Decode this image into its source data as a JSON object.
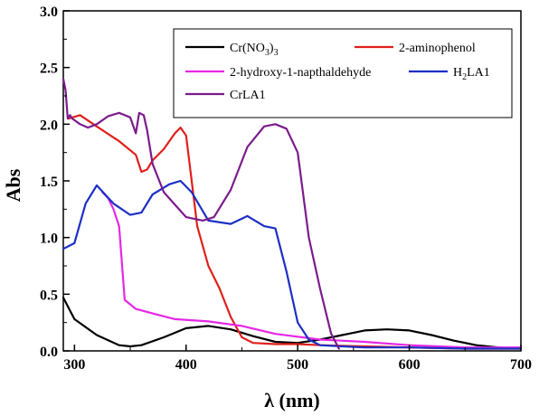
{
  "chart_data": {
    "type": "line",
    "xlabel": "λ (nm)",
    "ylabel": "Abs",
    "xlim": [
      290,
      700
    ],
    "ylim": [
      0.0,
      3.0
    ],
    "x_ticks": [
      300,
      400,
      500,
      600,
      700
    ],
    "y_ticks": [
      0.0,
      0.5,
      1.0,
      1.5,
      2.0,
      2.5,
      3.0
    ],
    "x_tick_labels": [
      "300",
      "400",
      "500",
      "600",
      "700"
    ],
    "y_tick_labels": [
      "0.0",
      "0.5",
      "1.0",
      "1.5",
      "2.0",
      "2.5",
      "3.0"
    ],
    "grid": false,
    "legend_position": "top-right",
    "series": [
      {
        "name": "Cr(NO3)3",
        "legend_main": "Cr(NO",
        "legend_sub": "3",
        "legend_tail": ")",
        "legend_sub2": "3",
        "color": "#000000",
        "x": [
          290,
          300,
          320,
          340,
          350,
          360,
          380,
          400,
          420,
          440,
          460,
          480,
          500,
          520,
          540,
          560,
          580,
          600,
          620,
          640,
          660,
          680,
          700
        ],
        "y": [
          0.47,
          0.28,
          0.14,
          0.05,
          0.04,
          0.05,
          0.12,
          0.2,
          0.22,
          0.19,
          0.13,
          0.08,
          0.07,
          0.1,
          0.14,
          0.18,
          0.19,
          0.18,
          0.14,
          0.09,
          0.05,
          0.03,
          0.02
        ]
      },
      {
        "name": "2-aminophenol",
        "legend_main": "2-aminophenol",
        "color": "#e0201b",
        "x": [
          295,
          305,
          320,
          340,
          355,
          360,
          365,
          370,
          380,
          390,
          395,
          400,
          410,
          420,
          430,
          440,
          450,
          460,
          480,
          500,
          520,
          560,
          600,
          650,
          700
        ],
        "y": [
          2.05,
          2.08,
          1.98,
          1.85,
          1.73,
          1.58,
          1.6,
          1.68,
          1.78,
          1.92,
          1.97,
          1.9,
          1.1,
          0.75,
          0.55,
          0.3,
          0.12,
          0.07,
          0.06,
          0.06,
          0.05,
          0.04,
          0.03,
          0.02,
          0.02
        ]
      },
      {
        "name": "2-hydroxy-1-napthaldehyde",
        "legend_main": "2-hydroxy-1-napthaldehyde",
        "color": "#e628e6",
        "x": [
          325,
          330,
          335,
          340,
          345,
          355,
          370,
          390,
          420,
          450,
          480,
          520,
          560,
          600,
          650,
          700
        ],
        "y": [
          1.4,
          1.35,
          1.25,
          1.1,
          0.45,
          0.37,
          0.33,
          0.28,
          0.26,
          0.22,
          0.15,
          0.1,
          0.08,
          0.05,
          0.03,
          0.03
        ]
      },
      {
        "name": "H2LA1",
        "legend_main": "H",
        "legend_sub": "2",
        "legend_tail": "LA1",
        "color": "#1c2fc4",
        "x": [
          290,
          300,
          310,
          320,
          335,
          350,
          360,
          370,
          385,
          395,
          405,
          420,
          440,
          455,
          470,
          480,
          490,
          500,
          510,
          520,
          540,
          560,
          600,
          650,
          700
        ],
        "y": [
          0.9,
          0.95,
          1.3,
          1.46,
          1.3,
          1.2,
          1.22,
          1.38,
          1.47,
          1.5,
          1.4,
          1.15,
          1.12,
          1.19,
          1.1,
          1.08,
          0.7,
          0.25,
          0.1,
          0.05,
          0.04,
          0.03,
          0.03,
          0.02,
          0.02
        ]
      },
      {
        "name": "CrLA1",
        "legend_main": "CrLA1",
        "color": "#7b1c8c",
        "x": [
          290,
          292,
          294,
          296,
          298,
          305,
          312,
          320,
          330,
          340,
          350,
          355,
          358,
          362,
          365,
          370,
          380,
          400,
          415,
          425,
          440,
          455,
          470,
          480,
          490,
          500,
          510,
          520,
          530,
          537
        ],
        "y": [
          2.4,
          2.3,
          2.05,
          2.08,
          2.05,
          2.0,
          1.97,
          2.0,
          2.07,
          2.1,
          2.06,
          1.92,
          2.1,
          2.08,
          1.95,
          1.65,
          1.4,
          1.18,
          1.15,
          1.18,
          1.42,
          1.8,
          1.98,
          2.0,
          1.96,
          1.75,
          1.0,
          0.55,
          0.15,
          0.02
        ]
      }
    ]
  }
}
